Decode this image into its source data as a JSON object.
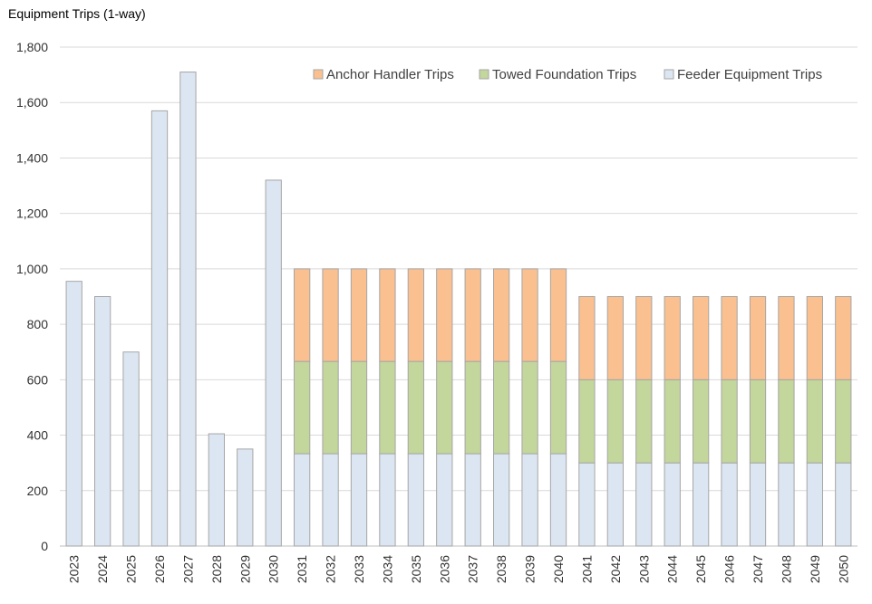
{
  "chart_data": {
    "type": "bar",
    "stacked": true,
    "title": "Equipment Trips (1-way)",
    "xlabel": "",
    "ylabel": "",
    "ylim": [
      0,
      1800
    ],
    "yticks": [
      0,
      200,
      400,
      600,
      800,
      1000,
      1200,
      1400,
      1600,
      1800
    ],
    "ytick_labels": [
      "0",
      "200",
      "400",
      "600",
      "800",
      "1,000",
      "1,200",
      "1,400",
      "1,600",
      "1,800"
    ],
    "grid": true,
    "legend_position": "top-right",
    "categories": [
      "2023",
      "2024",
      "2025",
      "2026",
      "2027",
      "2028",
      "2029",
      "2030",
      "2031",
      "2032",
      "2033",
      "2034",
      "2035",
      "2036",
      "2037",
      "2038",
      "2039",
      "2040",
      "2041",
      "2042",
      "2043",
      "2044",
      "2045",
      "2046",
      "2047",
      "2048",
      "2049",
      "2050"
    ],
    "series": [
      {
        "name": "Feeder Equipment Trips",
        "color": "#dce6f2",
        "values": [
          955,
          900,
          700,
          1570,
          1710,
          405,
          350,
          1320,
          333,
          333,
          333,
          333,
          333,
          333,
          333,
          333,
          333,
          333,
          300,
          300,
          300,
          300,
          300,
          300,
          300,
          300,
          300,
          300
        ]
      },
      {
        "name": "Towed Foundation Trips",
        "color": "#c3d69b",
        "values": [
          0,
          0,
          0,
          0,
          0,
          0,
          0,
          0,
          333,
          333,
          333,
          333,
          333,
          333,
          333,
          333,
          333,
          333,
          300,
          300,
          300,
          300,
          300,
          300,
          300,
          300,
          300,
          300
        ]
      },
      {
        "name": "Anchor Handler Trips",
        "color": "#fac090",
        "values": [
          0,
          0,
          0,
          0,
          0,
          0,
          0,
          0,
          334,
          334,
          334,
          334,
          334,
          334,
          334,
          334,
          334,
          334,
          300,
          300,
          300,
          300,
          300,
          300,
          300,
          300,
          300,
          300
        ]
      }
    ],
    "legend_order": [
      "Anchor Handler Trips",
      "Towed Foundation Trips",
      "Feeder Equipment Trips"
    ]
  }
}
